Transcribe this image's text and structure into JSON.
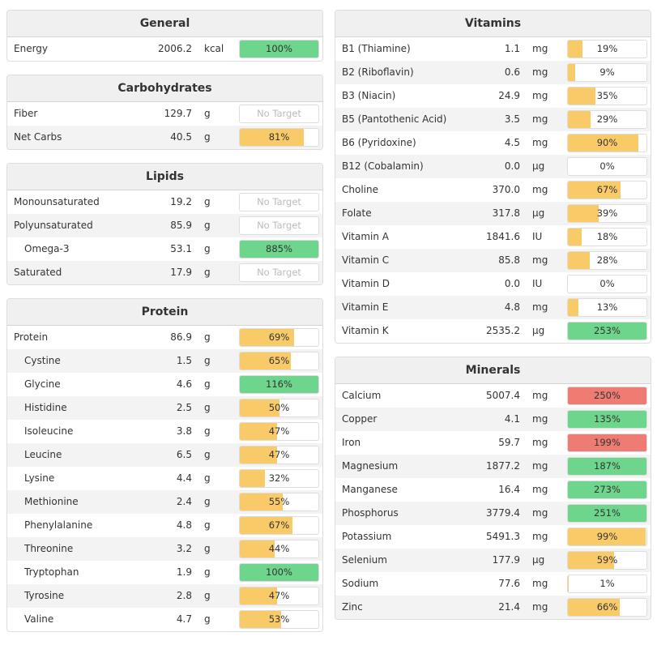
{
  "left_panels": [
    {
      "title": "General",
      "rows": [
        {
          "name": "Energy",
          "amount": "2006.2",
          "unit": "kcal",
          "target": "100%",
          "fraction": 1.0,
          "color": "green"
        }
      ]
    },
    {
      "title": "Carbohydrates",
      "rows": [
        {
          "name": "Fiber",
          "amount": "129.7",
          "unit": "g",
          "target": "No Target",
          "fraction": 0,
          "color": "none"
        },
        {
          "name": "Net Carbs",
          "amount": "40.5",
          "unit": "g",
          "target": "81%",
          "fraction": 0.81,
          "color": "yellow"
        }
      ]
    },
    {
      "title": "Lipids",
      "rows": [
        {
          "name": "Monounsaturated",
          "amount": "19.2",
          "unit": "g",
          "target": "No Target",
          "fraction": 0,
          "color": "none"
        },
        {
          "name": "Polyunsaturated",
          "amount": "85.9",
          "unit": "g",
          "target": "No Target",
          "fraction": 0,
          "color": "none"
        },
        {
          "name": "Omega-3",
          "amount": "53.1",
          "unit": "g",
          "target": "885%",
          "fraction": 1.0,
          "color": "green",
          "indent": true
        },
        {
          "name": "Saturated",
          "amount": "17.9",
          "unit": "g",
          "target": "No Target",
          "fraction": 0,
          "color": "none"
        }
      ]
    },
    {
      "title": "Protein",
      "rows": [
        {
          "name": "Protein",
          "amount": "86.9",
          "unit": "g",
          "target": "69%",
          "fraction": 0.69,
          "color": "yellow"
        },
        {
          "name": "Cystine",
          "amount": "1.5",
          "unit": "g",
          "target": "65%",
          "fraction": 0.65,
          "color": "yellow",
          "indent": true
        },
        {
          "name": "Glycine",
          "amount": "4.6",
          "unit": "g",
          "target": "116%",
          "fraction": 1.0,
          "color": "green",
          "indent": true
        },
        {
          "name": "Histidine",
          "amount": "2.5",
          "unit": "g",
          "target": "50%",
          "fraction": 0.5,
          "color": "yellow",
          "indent": true
        },
        {
          "name": "Isoleucine",
          "amount": "3.8",
          "unit": "g",
          "target": "47%",
          "fraction": 0.47,
          "color": "yellow",
          "indent": true
        },
        {
          "name": "Leucine",
          "amount": "6.5",
          "unit": "g",
          "target": "47%",
          "fraction": 0.47,
          "color": "yellow",
          "indent": true
        },
        {
          "name": "Lysine",
          "amount": "4.4",
          "unit": "g",
          "target": "32%",
          "fraction": 0.32,
          "color": "yellow",
          "indent": true
        },
        {
          "name": "Methionine",
          "amount": "2.4",
          "unit": "g",
          "target": "55%",
          "fraction": 0.55,
          "color": "yellow",
          "indent": true
        },
        {
          "name": "Phenylalanine",
          "amount": "4.8",
          "unit": "g",
          "target": "67%",
          "fraction": 0.67,
          "color": "yellow",
          "indent": true
        },
        {
          "name": "Threonine",
          "amount": "3.2",
          "unit": "g",
          "target": "44%",
          "fraction": 0.44,
          "color": "yellow",
          "indent": true
        },
        {
          "name": "Tryptophan",
          "amount": "1.9",
          "unit": "g",
          "target": "100%",
          "fraction": 1.0,
          "color": "green",
          "indent": true
        },
        {
          "name": "Tyrosine",
          "amount": "2.8",
          "unit": "g",
          "target": "47%",
          "fraction": 0.47,
          "color": "yellow",
          "indent": true
        },
        {
          "name": "Valine",
          "amount": "4.7",
          "unit": "g",
          "target": "53%",
          "fraction": 0.53,
          "color": "yellow",
          "indent": true
        }
      ]
    }
  ],
  "right_panels": [
    {
      "title": "Vitamins",
      "rows": [
        {
          "name": "B1 (Thiamine)",
          "amount": "1.1",
          "unit": "mg",
          "target": "19%",
          "fraction": 0.19,
          "color": "yellow"
        },
        {
          "name": "B2 (Riboflavin)",
          "amount": "0.6",
          "unit": "mg",
          "target": "9%",
          "fraction": 0.09,
          "color": "yellow"
        },
        {
          "name": "B3 (Niacin)",
          "amount": "24.9",
          "unit": "mg",
          "target": "35%",
          "fraction": 0.35,
          "color": "yellow"
        },
        {
          "name": "B5 (Pantothenic Acid)",
          "amount": "3.5",
          "unit": "mg",
          "target": "29%",
          "fraction": 0.29,
          "color": "yellow"
        },
        {
          "name": "B6 (Pyridoxine)",
          "amount": "4.5",
          "unit": "mg",
          "target": "90%",
          "fraction": 0.9,
          "color": "yellow"
        },
        {
          "name": "B12 (Cobalamin)",
          "amount": "0.0",
          "unit": "µg",
          "target": "0%",
          "fraction": 0,
          "color": "yellow"
        },
        {
          "name": "Choline",
          "amount": "370.0",
          "unit": "mg",
          "target": "67%",
          "fraction": 0.67,
          "color": "yellow"
        },
        {
          "name": "Folate",
          "amount": "317.8",
          "unit": "µg",
          "target": "39%",
          "fraction": 0.39,
          "color": "yellow"
        },
        {
          "name": "Vitamin A",
          "amount": "1841.6",
          "unit": "IU",
          "target": "18%",
          "fraction": 0.18,
          "color": "yellow"
        },
        {
          "name": "Vitamin C",
          "amount": "85.8",
          "unit": "mg",
          "target": "28%",
          "fraction": 0.28,
          "color": "yellow"
        },
        {
          "name": "Vitamin D",
          "amount": "0.0",
          "unit": "IU",
          "target": "0%",
          "fraction": 0,
          "color": "yellow"
        },
        {
          "name": "Vitamin E",
          "amount": "4.8",
          "unit": "mg",
          "target": "13%",
          "fraction": 0.13,
          "color": "yellow"
        },
        {
          "name": "Vitamin K",
          "amount": "2535.2",
          "unit": "µg",
          "target": "253%",
          "fraction": 1.0,
          "color": "green"
        }
      ]
    },
    {
      "title": "Minerals",
      "rows": [
        {
          "name": "Calcium",
          "amount": "5007.4",
          "unit": "mg",
          "target": "250%",
          "fraction": 1.0,
          "color": "red"
        },
        {
          "name": "Copper",
          "amount": "4.1",
          "unit": "mg",
          "target": "135%",
          "fraction": 1.0,
          "color": "green"
        },
        {
          "name": "Iron",
          "amount": "59.7",
          "unit": "mg",
          "target": "199%",
          "fraction": 1.0,
          "color": "red"
        },
        {
          "name": "Magnesium",
          "amount": "1877.2",
          "unit": "mg",
          "target": "187%",
          "fraction": 1.0,
          "color": "green"
        },
        {
          "name": "Manganese",
          "amount": "16.4",
          "unit": "mg",
          "target": "273%",
          "fraction": 1.0,
          "color": "green"
        },
        {
          "name": "Phosphorus",
          "amount": "3779.4",
          "unit": "mg",
          "target": "251%",
          "fraction": 1.0,
          "color": "green"
        },
        {
          "name": "Potassium",
          "amount": "5491.3",
          "unit": "mg",
          "target": "99%",
          "fraction": 0.99,
          "color": "yellow"
        },
        {
          "name": "Selenium",
          "amount": "177.9",
          "unit": "µg",
          "target": "59%",
          "fraction": 0.59,
          "color": "yellow"
        },
        {
          "name": "Sodium",
          "amount": "77.6",
          "unit": "mg",
          "target": "1%",
          "fraction": 0.01,
          "color": "yellow"
        },
        {
          "name": "Zinc",
          "amount": "21.4",
          "unit": "mg",
          "target": "66%",
          "fraction": 0.66,
          "color": "yellow"
        }
      ]
    }
  ]
}
